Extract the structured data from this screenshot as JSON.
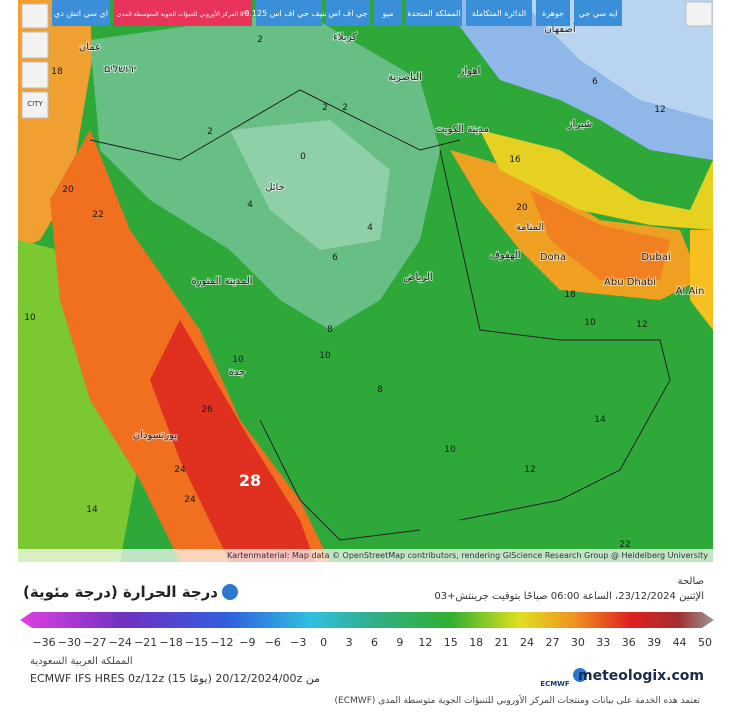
{
  "toolbar": {
    "tabs": [
      "اي سي اتش دي",
      "المركز الأوروبي للتنبؤات الجوية المتوسطة المدى IFS",
      "تصنيف جي اف اس 0.125",
      "جي اف اس",
      "ميو",
      "المملكة المتحدة",
      "الدائرة المتكاملة",
      "جوهرة",
      "ايه سي جي"
    ],
    "city_button": "CITY"
  },
  "map": {
    "labels": [
      "كربلاء",
      "الناصرية",
      "اهواز",
      "أصفهان",
      "شيراز",
      "مدينة الكويت",
      "حائل",
      "المدينة المنورة",
      "الرياض",
      "الهفوف",
      "المنامة",
      "Doha",
      "Dubai",
      "Abu Dhabi",
      "Al Ain",
      "جدة",
      "بورتسودان",
      "عمان",
      "ירושלים",
      "18",
      "22",
      "20",
      "2",
      "2",
      "0",
      "4",
      "2",
      "6",
      "8",
      "10",
      "8",
      "10",
      "12",
      "14",
      "16",
      "20",
      "18",
      "10",
      "12",
      "12",
      "6",
      "26",
      "24",
      "28",
      "14",
      "10",
      "22",
      "10",
      "24",
      "2",
      "4"
    ],
    "attribution": "Kartenmaterial: Map data © OpenStreetMap contributors, rendering GIScience Research Group @ Heidelberg University"
  },
  "legend": {
    "title": "درجة الحرارة (درجة مئوية)",
    "valid_label": "صالحة",
    "valid_time": "الإثنين 23/12/2024، الساعة 06:00 صباحًا بتوقيت جرينتش+03",
    "scale_labels": [
      "−36",
      "−30",
      "−27",
      "−24",
      "−21",
      "−18",
      "−15",
      "−12",
      "−9",
      "−6",
      "−3",
      "0",
      "3",
      "6",
      "9",
      "12",
      "15",
      "18",
      "21",
      "24",
      "27",
      "30",
      "33",
      "36",
      "39",
      "44",
      "50"
    ]
  },
  "info": {
    "region": "المملكة العربية السعودية",
    "model": "ECMWF IFS HRES 0z/12z (15 يومًا) 20/12/2024/00z من"
  },
  "footer": {
    "ecmwf_logo": "ECMWF",
    "logo": "meteologix.com",
    "credit": "(ECMWF) تعتمد هذه الخدمة على بيانات ومنتجات المركز الأوروبي للتنبؤات الجوية متوسطة المدى"
  }
}
